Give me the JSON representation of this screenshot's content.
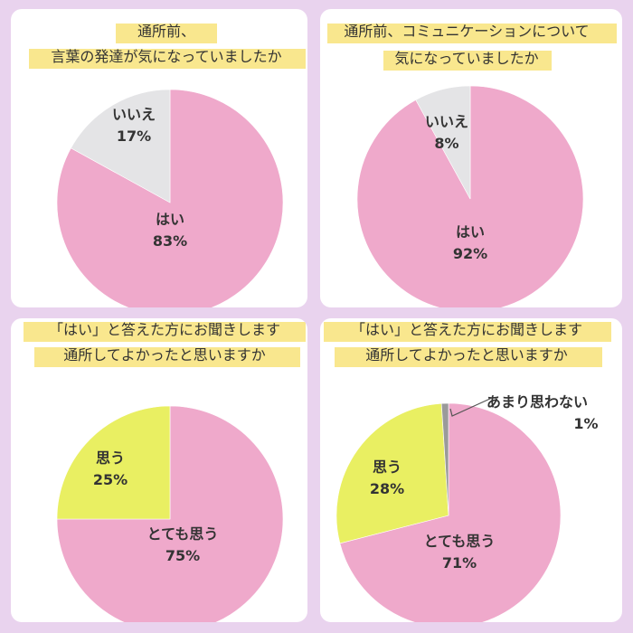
{
  "colors": {
    "background": "#e9d3ee",
    "highlight": "#f8e37a",
    "pink": "#efa9cb",
    "gray": "#e4e4e6",
    "yellow": "#e9ef62",
    "dark_gray": "#9a9a9a"
  },
  "chart_data": [
    {
      "type": "pie",
      "title_lines": [
        "通所前、",
        "言葉の発達が気になっていましたか"
      ],
      "slices": [
        {
          "label": "はい",
          "value": 83,
          "value_label": "83%",
          "color": "#efa9cb"
        },
        {
          "label": "いいえ",
          "value": 17,
          "value_label": "17%",
          "color": "#e4e4e6"
        }
      ]
    },
    {
      "type": "pie",
      "title_lines": [
        "通所前、コミュニケーションについて",
        "気になっていましたか"
      ],
      "slices": [
        {
          "label": "はい",
          "value": 92,
          "value_label": "92%",
          "color": "#efa9cb"
        },
        {
          "label": "いいえ",
          "value": 8,
          "value_label": "8%",
          "color": "#e4e4e6"
        }
      ]
    },
    {
      "type": "pie",
      "title_lines": [
        "「はい」と答えた方にお聞きします",
        "通所してよかったと思いますか"
      ],
      "slices": [
        {
          "label": "とても思う",
          "value": 75,
          "value_label": "75%",
          "color": "#efa9cb"
        },
        {
          "label": "思う",
          "value": 25,
          "value_label": "25%",
          "color": "#e9ef62"
        }
      ]
    },
    {
      "type": "pie",
      "title_lines": [
        "「はい」と答えた方にお聞きします",
        "通所してよかったと思いますか"
      ],
      "slices": [
        {
          "label": "とても思う",
          "value": 71,
          "value_label": "71%",
          "color": "#efa9cb"
        },
        {
          "label": "思う",
          "value": 28,
          "value_label": "28%",
          "color": "#e9ef62"
        },
        {
          "label": "あまり思わない",
          "value": 1,
          "value_label": "1%",
          "color": "#9a9a9a"
        }
      ]
    }
  ]
}
